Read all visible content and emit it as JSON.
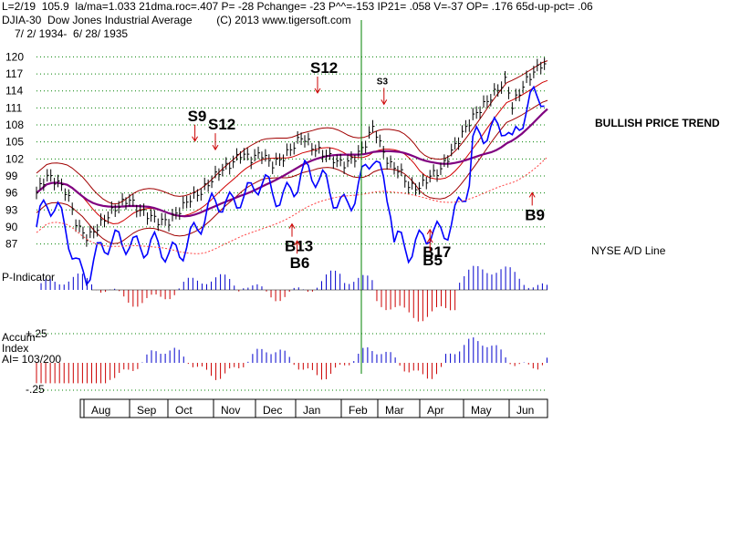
{
  "header": {
    "line1": "L=2/19  105.9  la/ma=1.033 21dma.roc=.407 P= -28 Pchange= -23 P^^=-153 IP21= .058 V=-37 OP= .176 65d-up-pct= .06",
    "index_code": "DJIA-30",
    "index_name": "Dow Jones Industrial Average",
    "copyright": "(C) 2013 www.tigersoft.com",
    "date_range": "7/ 2/ 1934-  6/ 28/ 1935"
  },
  "side_labels": {
    "trend": "BULLISH PRICE TREND",
    "ad_line": "NYSE A/D Line"
  },
  "colors": {
    "price_bar": "#000000",
    "upper_band": "#a00000",
    "ma_short": "#d00000",
    "ma_long": "#800080",
    "ad_line": "#0000ff",
    "ad_ma": "#ff4040",
    "pos_hist": "#0000cc",
    "neg_hist": "#cc0000",
    "signal_arrow": "#cc0000",
    "marker_line": "#008000",
    "grid": "#008000"
  },
  "chart_data": {
    "type": "line",
    "title": "DJIA-30 Dow Jones Industrial Average",
    "x_months": [
      "Aug",
      "Sep",
      "Oct",
      "Nov",
      "Dec",
      "Jan",
      "Feb",
      "Mar",
      "Apr",
      "May",
      "Jun"
    ],
    "y_ticks": [
      120,
      117,
      114,
      111,
      108,
      105,
      102,
      99,
      96,
      93,
      90,
      87
    ],
    "ylim": [
      85,
      122
    ],
    "price_series": [
      {
        "t": 0,
        "v": 96
      },
      {
        "t": 2,
        "v": 99
      },
      {
        "t": 4,
        "v": 98
      },
      {
        "t": 6,
        "v": 96
      },
      {
        "t": 8,
        "v": 90
      },
      {
        "t": 10,
        "v": 88
      },
      {
        "t": 12,
        "v": 90
      },
      {
        "t": 15,
        "v": 93
      },
      {
        "t": 18,
        "v": 95
      },
      {
        "t": 20,
        "v": 93
      },
      {
        "t": 22,
        "v": 92
      },
      {
        "t": 24,
        "v": 91
      },
      {
        "t": 26,
        "v": 91
      },
      {
        "t": 28,
        "v": 93
      },
      {
        "t": 30,
        "v": 95
      },
      {
        "t": 32,
        "v": 96
      },
      {
        "t": 34,
        "v": 98
      },
      {
        "t": 36,
        "v": 100
      },
      {
        "t": 38,
        "v": 101
      },
      {
        "t": 40,
        "v": 103
      },
      {
        "t": 42,
        "v": 102
      },
      {
        "t": 44,
        "v": 103
      },
      {
        "t": 46,
        "v": 101
      },
      {
        "t": 48,
        "v": 102
      },
      {
        "t": 50,
        "v": 104
      },
      {
        "t": 52,
        "v": 106
      },
      {
        "t": 54,
        "v": 104
      },
      {
        "t": 56,
        "v": 103
      },
      {
        "t": 58,
        "v": 102
      },
      {
        "t": 60,
        "v": 101
      },
      {
        "t": 62,
        "v": 102
      },
      {
        "t": 64,
        "v": 104
      },
      {
        "t": 66,
        "v": 108
      },
      {
        "t": 67,
        "v": 105
      },
      {
        "t": 69,
        "v": 101
      },
      {
        "t": 71,
        "v": 100
      },
      {
        "t": 73,
        "v": 97
      },
      {
        "t": 75,
        "v": 97
      },
      {
        "t": 77,
        "v": 99
      },
      {
        "t": 79,
        "v": 100
      },
      {
        "t": 81,
        "v": 103
      },
      {
        "t": 83,
        "v": 106
      },
      {
        "t": 85,
        "v": 109
      },
      {
        "t": 87,
        "v": 111
      },
      {
        "t": 89,
        "v": 113
      },
      {
        "t": 91,
        "v": 115
      },
      {
        "t": 92,
        "v": 116
      },
      {
        "t": 93,
        "v": 111
      },
      {
        "t": 94,
        "v": 113
      },
      {
        "t": 96,
        "v": 116
      },
      {
        "t": 98,
        "v": 118
      },
      {
        "t": 99,
        "v": 119
      },
      {
        "t": 100,
        "v": 118
      }
    ],
    "signals": [
      {
        "label": "S9",
        "t": 31,
        "v": 104.5,
        "kind": "sell"
      },
      {
        "label": "S12",
        "t": 35,
        "v": 103,
        "kind": "sell"
      },
      {
        "label": "S12",
        "t": 55,
        "v": 113,
        "kind": "sell"
      },
      {
        "label": "S3",
        "t": 68,
        "v": 111,
        "kind": "sell"
      },
      {
        "label": "B13",
        "t": 50,
        "v": 91.5,
        "kind": "buy"
      },
      {
        "label": "B6",
        "t": 51,
        "v": 88.5,
        "kind": "buy"
      },
      {
        "label": "B17",
        "t": 77,
        "v": 90.5,
        "kind": "buy"
      },
      {
        "label": "B5",
        "t": 77,
        "v": 89,
        "kind": "buy"
      },
      {
        "label": "B9",
        "t": 97,
        "v": 97,
        "kind": "buy"
      }
    ],
    "p_indicator_label": "P-Indicator",
    "accum_label": "Accum",
    "index_label": "Index",
    "ai_label": "AI= 103/200",
    "accum_ticks": [
      "+.25",
      "-.25"
    ]
  }
}
